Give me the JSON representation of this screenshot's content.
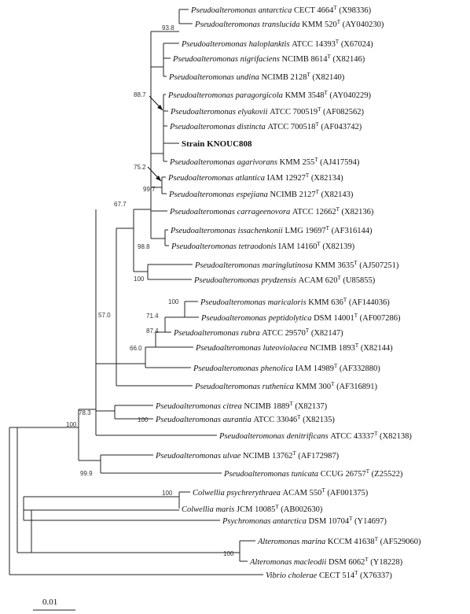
{
  "figure": {
    "scale_label": "0.01",
    "taxa": [
      {
        "id": "t1",
        "genus_species": "Pseudoalteromonas antarctica",
        "strain": "CECT 4664",
        "type": "T",
        "acc": "(X98336)"
      },
      {
        "id": "t2",
        "genus_species": "Pseudoalteromonas translucida",
        "strain": "KMM 520",
        "type": "T",
        "acc": "(AY040230)"
      },
      {
        "id": "t3",
        "genus_species": "Pseudoalteromonas haloplanktis",
        "strain": "ATCC 14393",
        "type": "T",
        "acc": "(X67024)"
      },
      {
        "id": "t4",
        "genus_species": "Pseudoalteromonas nigrifaciens",
        "strain": "NCIMB 8614",
        "type": "T",
        "acc": "(X82146)"
      },
      {
        "id": "t5",
        "genus_species": "Pseudoalteromonas undina",
        "strain": "NCIMB 2128",
        "type": "T",
        "acc": "(X82140)"
      },
      {
        "id": "t6",
        "genus_species": "Pseudoalteromonas paragorgicola",
        "strain": "KMM 3548",
        "type": "T",
        "acc": "(AY040229)"
      },
      {
        "id": "t7",
        "genus_species": "Pseudoalteromonas elyakovii",
        "strain": "ATCC 700519",
        "type": "T",
        "acc": "(AF082562)"
      },
      {
        "id": "t8",
        "genus_species": "Pseudoalteromonas distincta",
        "strain": "ATCC 700518",
        "type": "T",
        "acc": "(AF043742)"
      },
      {
        "id": "t9",
        "plain": "Strain KNOUC808",
        "highlight": true
      },
      {
        "id": "t10",
        "genus_species": "Pseudoalteromonas agarivorans",
        "strain": "KMM 255",
        "type": "T",
        "acc": "(AJ417594)"
      },
      {
        "id": "t11",
        "genus_species": "Pseudoalteromonas atlantica",
        "strain": "IAM 12927",
        "type": "T",
        "acc": "(X82134)"
      },
      {
        "id": "t12",
        "genus_species": "Pseudoalteromonas espejiana",
        "strain": "NCIMB 2127",
        "type": "T",
        "acc": "(X82143)"
      },
      {
        "id": "t13",
        "genus_species": "Pseudoalteromonas carrageenovora",
        "strain": "ATCC 12662",
        "type": "T",
        "acc": "(X82136)"
      },
      {
        "id": "t14",
        "genus_species": "Pseudoalteromonas issachenkonii",
        "strain": "LMG 19697",
        "type": "T",
        "acc": "(AF316144)"
      },
      {
        "id": "t15",
        "genus_species": "Pseudoalteromonas tetraodonis",
        "strain": "IAM 14160",
        "type": "T",
        "acc": "(X82139)"
      },
      {
        "id": "t16",
        "genus_species": "Pseudoalteromonas maringlutinosa",
        "strain": "KMM 3635",
        "type": "T",
        "acc": "(AJ507251)"
      },
      {
        "id": "t17",
        "genus_species": "Pseudoalteromonas prydzensis",
        "strain": "ACAM 620",
        "type": "T",
        "acc": "(U85855)"
      },
      {
        "id": "t18",
        "genus_species": "Pseudoalteromonas maricaloris",
        "strain": "KMM 636",
        "type": "T",
        "acc": "(AF144036)"
      },
      {
        "id": "t19",
        "genus_species": "Pseudoalteromonas peptidolytica",
        "strain": "DSM 14001",
        "type": "T",
        "acc": "(AF007286)"
      },
      {
        "id": "t20",
        "genus_species": "Pseudoalteromonas rubra",
        "strain": "ATCC 29570",
        "type": "T",
        "acc": "(X82147)"
      },
      {
        "id": "t21",
        "genus_species": "Pseudoalteromonas luteoviolacea",
        "strain": "NCIMB 1893",
        "type": "T",
        "acc": "(X82144)"
      },
      {
        "id": "t22",
        "genus_species": "Pseudoalteromonas phenolica",
        "strain": "IAM 14989",
        "type": "T",
        "acc": "(AF332880)"
      },
      {
        "id": "t23",
        "genus_species": "Pseudoalteromonas ruthenica",
        "strain": "KMM 300",
        "type": "T",
        "acc": "(AF316891)"
      },
      {
        "id": "t24",
        "genus_species": "Pseudoalteromonas citrea",
        "strain": "NCIMB 1889",
        "type": "T",
        "acc": "(X82137)"
      },
      {
        "id": "t25",
        "genus_species": "Pseudoalteromonas aurantia",
        "strain": "ATCC 33046",
        "type": "T",
        "acc": "(X82135)"
      },
      {
        "id": "t26",
        "genus_species": "Pseudoalteromonas denitrificans",
        "strain": "ATCC 43337",
        "type": "T",
        "acc": "(X82138)"
      },
      {
        "id": "t27",
        "genus_species": "Pseudoalteromonas ulvae",
        "strain": "NCIMB 13762",
        "type": "T",
        "acc": "(AF172987)"
      },
      {
        "id": "t28",
        "genus_species": "Pseudoalteromonas tunicata",
        "strain": "CCUG 26757",
        "type": "T",
        "acc": "(Z25522)"
      },
      {
        "id": "t29",
        "genus_species": "Colwellia psychrerythraea",
        "strain": "ACAM 550",
        "type": "T",
        "acc": "(AF001375)"
      },
      {
        "id": "t30",
        "genus_species": "Colwellia maris",
        "strain": "JCM 10085",
        "type": "T",
        "acc": "(AB002630)"
      },
      {
        "id": "t31",
        "genus_species": "Psychromonas antarctica",
        "strain": "DSM 10704",
        "type": "T",
        "acc": "(Y14697)"
      },
      {
        "id": "t32",
        "genus_species": "Alteromonas marina",
        "strain": "KCCM 41638",
        "type": "T",
        "acc": "(AF529060)"
      },
      {
        "id": "t33",
        "genus_species": "Alteromonas macleodii",
        "strain": "DSM 6062",
        "type": "T",
        "acc": "(Y18228)"
      },
      {
        "id": "t34",
        "genus_species": "Vibrio cholerae",
        "strain": "CECT 514",
        "type": "T",
        "acc": "(X76337)"
      }
    ],
    "bootstrap": [
      {
        "id": "b1",
        "text": "93.8"
      },
      {
        "id": "b2",
        "text": "88.7"
      },
      {
        "id": "b3",
        "text": "75.2"
      },
      {
        "id": "b4",
        "text": "99.7"
      },
      {
        "id": "b5",
        "text": "98.8"
      },
      {
        "id": "b6",
        "text": "67.7"
      },
      {
        "id": "b7",
        "text": "100"
      },
      {
        "id": "b8",
        "text": "57.0"
      },
      {
        "id": "b9",
        "text": "100"
      },
      {
        "id": "b10",
        "text": "71.4"
      },
      {
        "id": "b11",
        "text": "87.4"
      },
      {
        "id": "b12",
        "text": "66.0"
      },
      {
        "id": "b13",
        "text": "78.3"
      },
      {
        "id": "b14",
        "text": "100"
      },
      {
        "id": "b15",
        "text": "100"
      },
      {
        "id": "b16",
        "text": "99.9"
      },
      {
        "id": "b17",
        "text": "100"
      },
      {
        "id": "b18",
        "text": "100"
      }
    ]
  }
}
